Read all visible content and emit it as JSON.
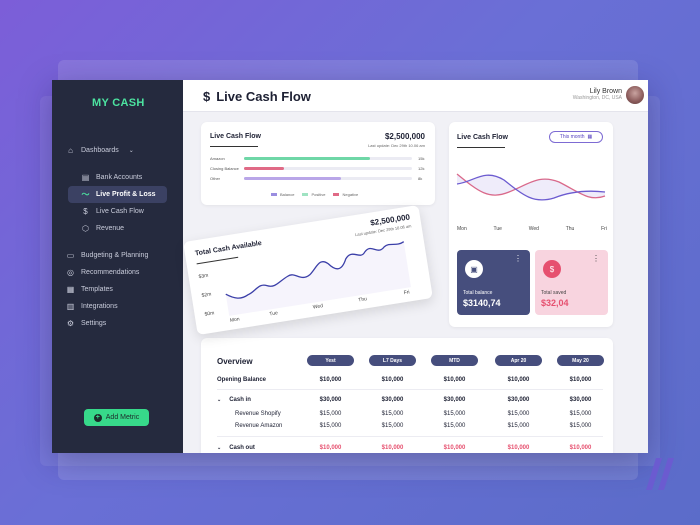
{
  "brand": "MY CASH",
  "sidebar": {
    "items": [
      {
        "label": "Dashboards",
        "icon": "home-icon"
      },
      {
        "label": "Bank Accounts",
        "icon": "bank-icon"
      },
      {
        "label": "Live Profit & Loss",
        "icon": "trend-icon"
      },
      {
        "label": "Live Cash Flow",
        "icon": "dollar-icon"
      },
      {
        "label": "Revenue",
        "icon": "revenue-icon"
      },
      {
        "label": "Budgeting & Planning",
        "icon": "folder-icon"
      },
      {
        "label": "Recommendations",
        "icon": "bulb-icon"
      },
      {
        "label": "Templates",
        "icon": "template-icon"
      },
      {
        "label": "Integrations",
        "icon": "chart-icon"
      },
      {
        "label": "Settings",
        "icon": "gear-icon"
      }
    ],
    "add_metric": "Add Metric"
  },
  "header": {
    "title": "Live Cash Flow",
    "title_icon": "$",
    "user_name": "Lily Brown",
    "user_location": "Washington, DC, USA"
  },
  "cash_flow_card": {
    "title": "Live Cash Flow",
    "amount": "$2,500,000",
    "last_update": "Last update: Dec 29th 10.06 am",
    "rows": [
      {
        "label": "Amazon",
        "value": "15k",
        "fraction": 0.75,
        "color": "#6fd7a7"
      },
      {
        "label": "Closing Balance",
        "value": "12k",
        "fraction": 0.24,
        "color": "#e06a86"
      },
      {
        "label": "Other",
        "value": "8k",
        "fraction": 0.58,
        "color": "#b9a6e8"
      }
    ],
    "legend": [
      {
        "label": "Balance",
        "color": "#9a8de0"
      },
      {
        "label": "Positive",
        "color": "#9fe3c2"
      },
      {
        "label": "Negative",
        "color": "#e06a86"
      }
    ]
  },
  "total_cash_card": {
    "title": "Total Cash Available",
    "amount": "$2,500,000",
    "last_update": "Last update: Dec 29th 10.06 am",
    "y_ticks": [
      "$3m",
      "$2m",
      "$0m"
    ],
    "x_ticks": [
      "Mon",
      "Tue",
      "Wed",
      "Thu",
      "Fri"
    ]
  },
  "month_chart": {
    "title": "Live Cash Flow",
    "filter": "This month",
    "days": [
      "Mon",
      "Tue",
      "Wed",
      "Thu",
      "Fri"
    ]
  },
  "tiles": {
    "balance": {
      "label": "Total balance",
      "value": "$3140,74"
    },
    "saved": {
      "label": "Total saved",
      "value": "$32,04"
    }
  },
  "overview": {
    "title": "Overview",
    "columns": [
      "Yest",
      "L7 Days",
      "MTD",
      "Apr 20",
      "May 20"
    ],
    "rows": [
      {
        "label": "Opening Balance",
        "bold": true,
        "values": [
          "$10,000",
          "$10,000",
          "$10,000",
          "$10,000",
          "$10,000"
        ]
      },
      {
        "label": "Cash in",
        "bold": true,
        "chevron": "⌄",
        "values": [
          "$30,000",
          "$30,000",
          "$30,000",
          "$30,000",
          "$30,000"
        ]
      },
      {
        "label": "Revenue Shopify",
        "bold": false,
        "values": [
          "$15,000",
          "$15,000",
          "$15,000",
          "$15,000",
          "$15,000"
        ]
      },
      {
        "label": "Revenue Amazon",
        "bold": false,
        "values": [
          "$15,000",
          "$15,000",
          "$15,000",
          "$15,000",
          "$15,000"
        ]
      },
      {
        "label": "Cash out",
        "bold": true,
        "chevron": "⌄",
        "negative": true,
        "values": [
          "$10,000",
          "$10,000",
          "$10,000",
          "$10,000",
          "$10,000"
        ]
      }
    ]
  },
  "colors": {
    "sidebar_bg": "#252a3e",
    "accent_green": "#37d98a",
    "accent_navy": "#464e7d",
    "accent_pink": "#e6506f"
  }
}
